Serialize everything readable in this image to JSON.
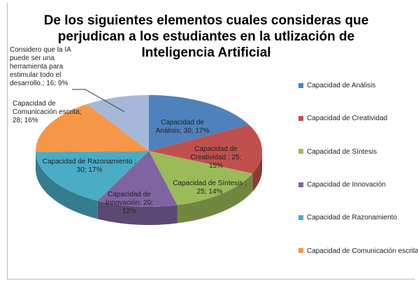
{
  "chart_data": {
    "type": "pie",
    "title": "De los siguientes elementos cuales consideras que perjudican a los estudiantes en la utlización de Inteligencia Artificial",
    "values": [
      30,
      25,
      25,
      20,
      30,
      28,
      16
    ],
    "value_labels": [
      "Capacidad de Análisis; 30; 17%",
      "Capacidad de Creatividad ; 25; 15%",
      "Capacidad de Síntesis ; 25; 14%",
      "Capacidad de Innovación; 20; 12%",
      "Capacidad de Razonamiento ; 30; 17%",
      "Capacidad de Comunicación escrita; 28; 16%",
      "Considero que la IA puede ser una herramienta para estimular todo el desarrollo.; 16; 9%"
    ],
    "colors": [
      "#4f81bd",
      "#c0504d",
      "#9bbb59",
      "#8064a2",
      "#4bacc6",
      "#f79646",
      "#a5b8da"
    ],
    "legend": [
      "Capacidad de Análisis",
      "Capacidad de Creatividad",
      "Capacidad de Síntesis",
      "Capacidad de Innovación",
      "Capacidad de Razonamiento",
      "Capacidad de Comunicación escrita"
    ]
  }
}
